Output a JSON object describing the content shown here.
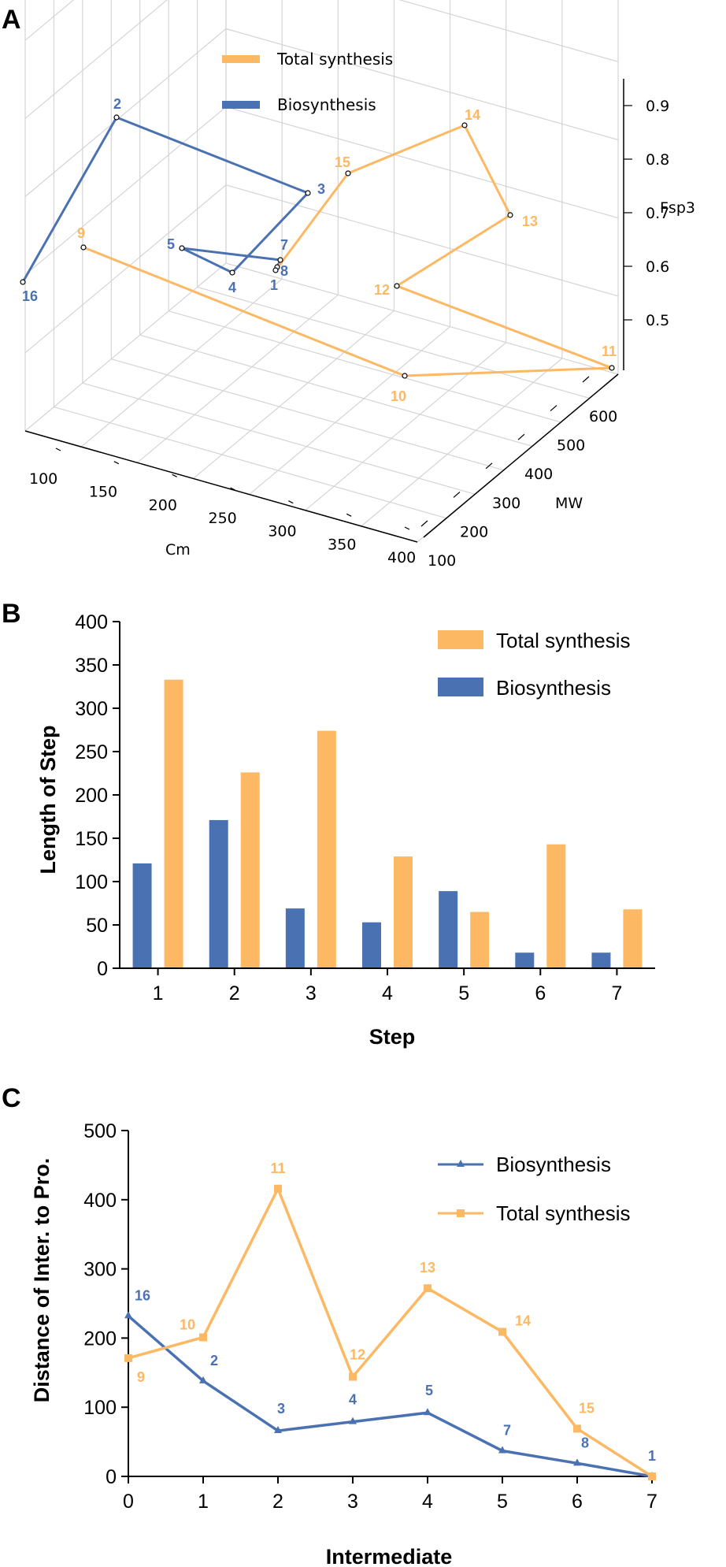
{
  "colors": {
    "total": "#FDB863",
    "bio": "#4A72B2"
  },
  "panels": {
    "a": "A",
    "b": "B",
    "c": "C"
  },
  "chart_data": [
    {
      "type": "scatter3d",
      "panel": "A",
      "legend": [
        {
          "label": "Total synthesis",
          "color": "#FDB863"
        },
        {
          "label": "Biosynthesis",
          "color": "#4A72B2"
        }
      ],
      "axes": {
        "cm": {
          "label": "Cm",
          "ticks": [
            "100",
            "150",
            "200",
            "250",
            "300",
            "350",
            "400"
          ]
        },
        "mw": {
          "label": "MW",
          "ticks": [
            "100",
            "200",
            "300",
            "400",
            "500",
            "600"
          ]
        },
        "fsp3": {
          "label": "Fsp3",
          "ticks": [
            "0.5",
            "0.6",
            "0.7",
            "0.8",
            "0.9"
          ]
        }
      },
      "series": [
        {
          "name": "Biosynthesis",
          "path": [
            "16",
            "2",
            "3",
            "4",
            "5",
            "7",
            "8",
            "1"
          ]
        },
        {
          "name": "Total synthesis",
          "path": [
            "9",
            "10",
            "11",
            "12",
            "13",
            "14",
            "15",
            "1"
          ]
        }
      ]
    },
    {
      "type": "bar",
      "panel": "B",
      "xlabel": "Step",
      "ylabel": "Length of Step",
      "categories": [
        "1",
        "2",
        "3",
        "4",
        "5",
        "6",
        "7"
      ],
      "ylim": [
        0,
        400
      ],
      "yticks": [
        "0",
        "50",
        "100",
        "150",
        "200",
        "250",
        "300",
        "350",
        "400"
      ],
      "legend_position": "top-right",
      "series": [
        {
          "name": "Total synthesis",
          "values": [
            333,
            226,
            274,
            129,
            65,
            143,
            68
          ]
        },
        {
          "name": "Biosynthesis",
          "values": [
            121,
            171,
            69,
            53,
            89,
            18,
            18
          ]
        }
      ]
    },
    {
      "type": "line",
      "panel": "C",
      "xlabel": "Intermediate",
      "ylabel": "Distance of Inter. to Pro.",
      "x": [
        0,
        1,
        2,
        3,
        4,
        5,
        6,
        7
      ],
      "xticks": [
        "0",
        "1",
        "2",
        "3",
        "4",
        "5",
        "6",
        "7"
      ],
      "ylim": [
        0,
        500
      ],
      "yticks": [
        "0",
        "100",
        "200",
        "300",
        "400",
        "500"
      ],
      "legend_position": "top-right",
      "series": [
        {
          "name": "Biosynthesis",
          "marker": "triangle",
          "values": [
            232,
            138,
            66,
            79,
            92,
            37,
            19,
            0
          ],
          "point_labels": [
            "16",
            "2",
            "3",
            "4",
            "5",
            "7",
            "8",
            "1"
          ]
        },
        {
          "name": "Total synthesis",
          "marker": "square",
          "values": [
            171,
            201,
            416,
            144,
            272,
            209,
            69,
            0
          ],
          "point_labels": [
            "9",
            "10",
            "11",
            "12",
            "13",
            "14",
            "15",
            ""
          ]
        }
      ]
    }
  ]
}
